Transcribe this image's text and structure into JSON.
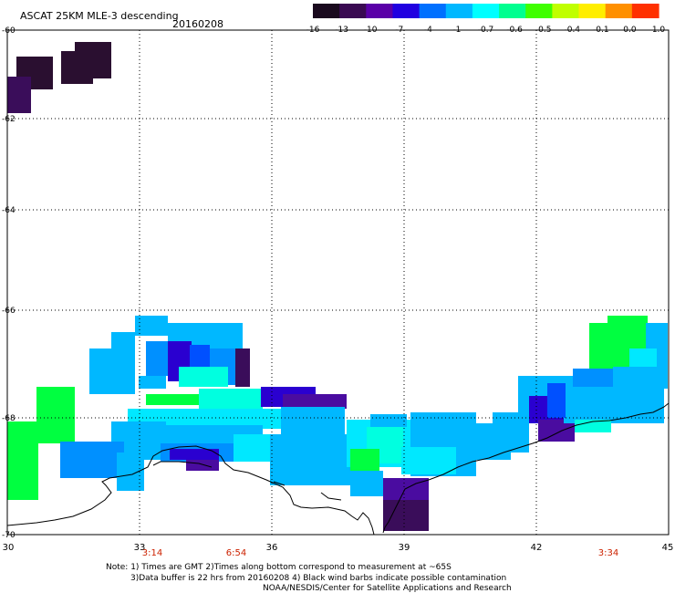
{
  "header": {
    "title": "ASCAT 25KM MLE-3 descending",
    "date": "20160208"
  },
  "colorbar": {
    "labels": [
      "-16",
      "-13",
      "-10",
      "-7",
      "-4",
      "-1",
      "-0.7",
      "-0.6",
      "-0.5",
      "-0.4",
      "-0.1",
      "0.0",
      "1.0"
    ],
    "colors": [
      "#1a0a1e",
      "#3a0a52",
      "#5a00a8",
      "#2000e0",
      "#0070ff",
      "#00b8ff",
      "#00ffff",
      "#00ff90",
      "#40ff00",
      "#c0ff00",
      "#ffee00",
      "#ff9000",
      "#ff3000"
    ]
  },
  "axes": {
    "y_labels": [
      "-60",
      "-62",
      "-64",
      "-66",
      "-68",
      "-70"
    ],
    "x_labels": [
      "30",
      "33",
      "36",
      "39",
      "42",
      "45"
    ]
  },
  "times": [
    "3:14",
    "6:54",
    "3:34"
  ],
  "notes": {
    "line1": "Note: 1) Times are GMT 2)Times along bottom correspond to measurement at ~65S",
    "line2": "3)Data buffer is 22 hrs from 20160208 4) Black wind barbs indicate possible contamination",
    "line3": "NOAA/NESDIS/Center for Satellite Applications and Research"
  },
  "palette": {
    "dark": "#2a0f30",
    "deep_purple": "#3a0d5a",
    "purple": "#4a0ca0",
    "indigo": "#2a00d0",
    "blue": "#0050ff",
    "mid_blue": "#0090ff",
    "light_blue": "#00b8ff",
    "cyan": "#00e8ff",
    "aqua": "#00ffe0",
    "green": "#00ff40",
    "time_red": "#cc2200"
  }
}
